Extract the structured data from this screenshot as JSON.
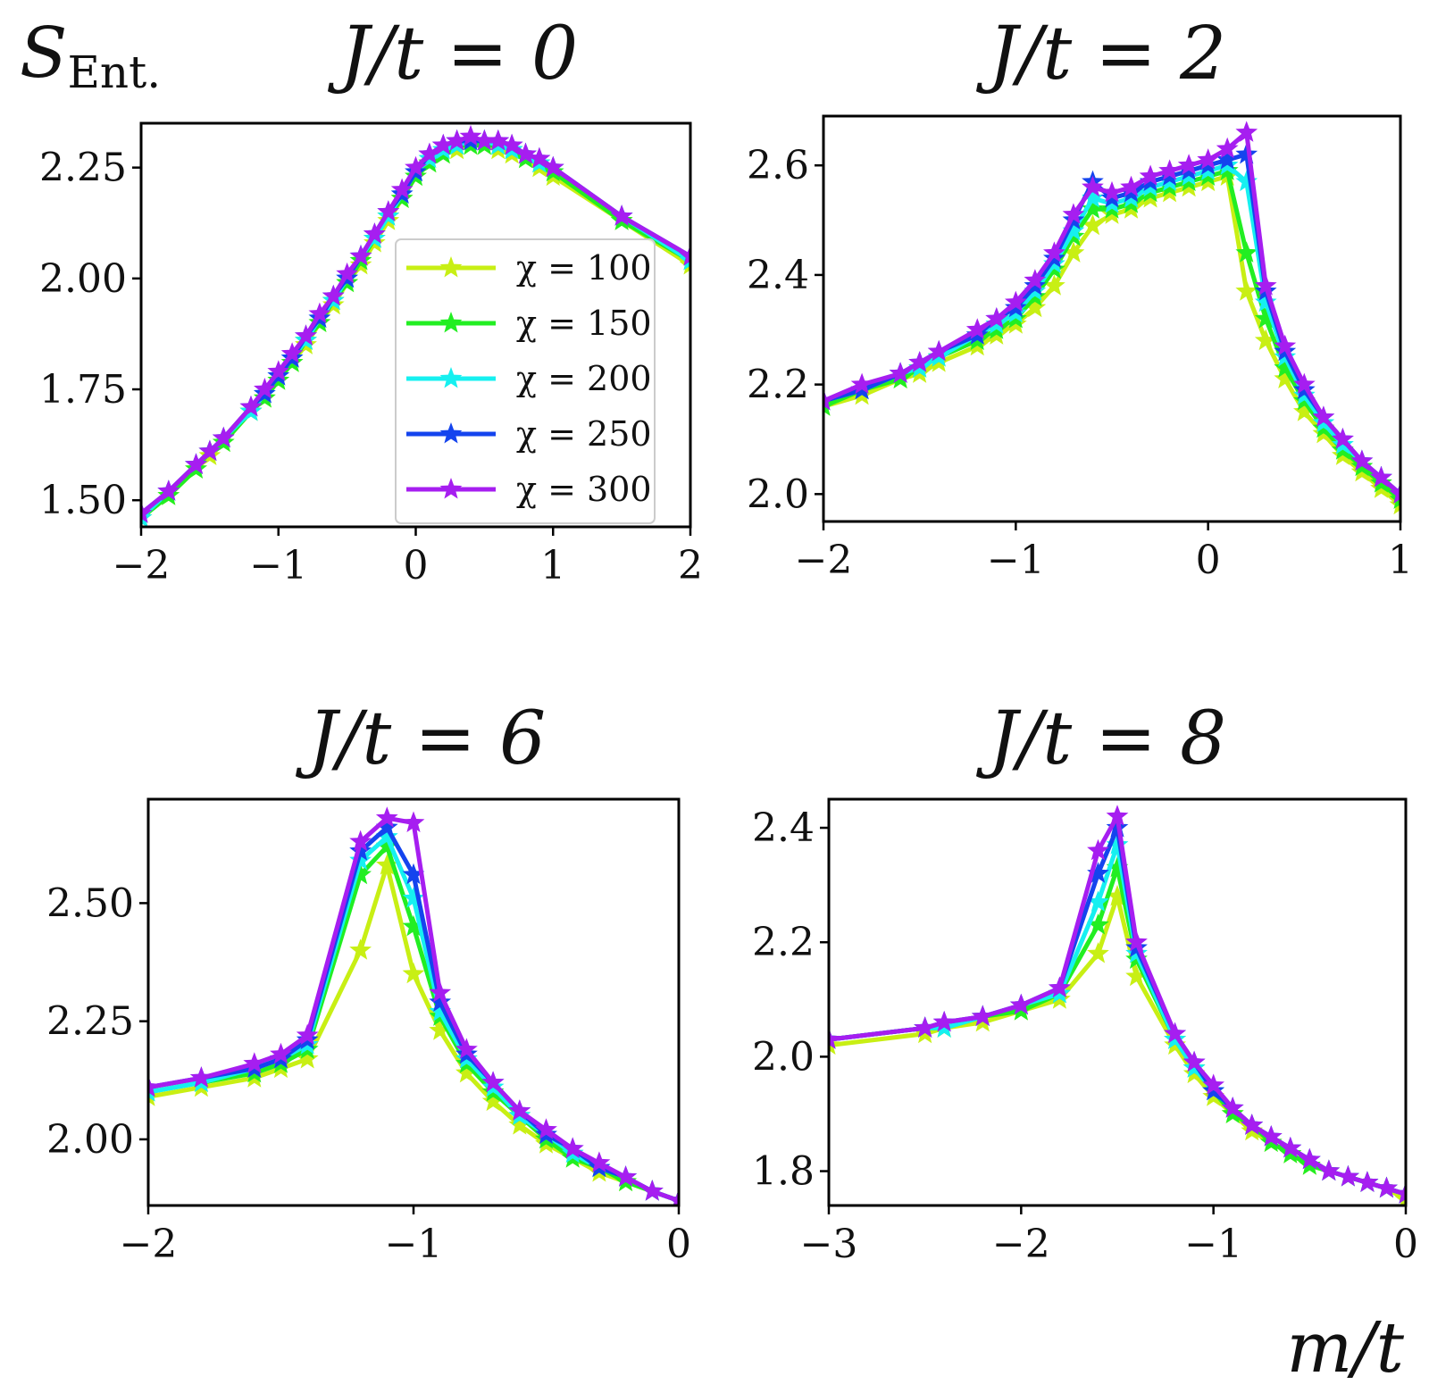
{
  "figure": {
    "ylabel": "S_Ent.",
    "ylabel_main": "S",
    "ylabel_sub": "Ent.",
    "xlabel": "m/t"
  },
  "legend": {
    "items": [
      {
        "label": "χ = 100",
        "color": "#c8ef14"
      },
      {
        "label": "χ = 150",
        "color": "#22ee22"
      },
      {
        "label": "χ = 200",
        "color": "#16f0f0"
      },
      {
        "label": "χ = 250",
        "color": "#1444ee"
      },
      {
        "label": "χ = 300",
        "color": "#a61ef0"
      }
    ]
  },
  "chart_data": [
    {
      "type": "line",
      "title": "J/t = 0",
      "xlim": [
        -2,
        2
      ],
      "ylim": [
        1.44,
        2.35
      ],
      "xticks": [
        -2,
        -1,
        0,
        1,
        2
      ],
      "yticks": [
        1.5,
        1.75,
        2.0,
        2.25
      ],
      "xtick_labels": [
        "−2",
        "−1",
        "0",
        "1",
        "2"
      ],
      "ytick_labels": [
        "1.50",
        "1.75",
        "2.00",
        "2.25"
      ],
      "legend": "inside",
      "x": [
        -2.0,
        -1.8,
        -1.6,
        -1.5,
        -1.4,
        -1.2,
        -1.1,
        -1.0,
        -0.9,
        -0.8,
        -0.7,
        -0.6,
        -0.5,
        -0.4,
        -0.3,
        -0.2,
        -0.1,
        0.0,
        0.1,
        0.2,
        0.3,
        0.4,
        0.5,
        0.6,
        0.7,
        0.8,
        0.9,
        1.0,
        1.5,
        2.0
      ],
      "series": [
        {
          "name": "χ = 100",
          "color": "#c8ef14",
          "values": [
            1.46,
            1.51,
            1.57,
            1.6,
            1.63,
            1.7,
            1.73,
            1.77,
            1.81,
            1.85,
            1.9,
            1.94,
            1.99,
            2.03,
            2.08,
            2.13,
            2.18,
            2.23,
            2.26,
            2.28,
            2.29,
            2.3,
            2.3,
            2.29,
            2.28,
            2.27,
            2.25,
            2.23,
            2.13,
            2.03
          ]
        },
        {
          "name": "χ = 150",
          "color": "#22ee22",
          "values": [
            1.46,
            1.51,
            1.57,
            1.61,
            1.63,
            1.7,
            1.73,
            1.77,
            1.81,
            1.86,
            1.9,
            1.95,
            1.99,
            2.04,
            2.09,
            2.14,
            2.18,
            2.23,
            2.26,
            2.28,
            2.3,
            2.3,
            2.3,
            2.3,
            2.29,
            2.27,
            2.26,
            2.24,
            2.13,
            2.04
          ]
        },
        {
          "name": "χ = 200",
          "color": "#16f0f0",
          "values": [
            1.46,
            1.52,
            1.58,
            1.61,
            1.64,
            1.7,
            1.74,
            1.78,
            1.82,
            1.86,
            1.91,
            1.95,
            2.0,
            2.05,
            2.09,
            2.14,
            2.19,
            2.24,
            2.27,
            2.29,
            2.3,
            2.31,
            2.31,
            2.3,
            2.29,
            2.28,
            2.26,
            2.25,
            2.14,
            2.04
          ]
        },
        {
          "name": "χ = 250",
          "color": "#1444ee",
          "values": [
            1.47,
            1.52,
            1.58,
            1.61,
            1.64,
            1.71,
            1.74,
            1.78,
            1.82,
            1.87,
            1.91,
            1.96,
            2.0,
            2.05,
            2.1,
            2.15,
            2.19,
            2.24,
            2.28,
            2.3,
            2.31,
            2.31,
            2.31,
            2.31,
            2.3,
            2.28,
            2.27,
            2.25,
            2.14,
            2.05
          ]
        },
        {
          "name": "χ = 300",
          "color": "#a61ef0",
          "values": [
            1.47,
            1.52,
            1.58,
            1.61,
            1.64,
            1.71,
            1.75,
            1.79,
            1.83,
            1.87,
            1.92,
            1.96,
            2.01,
            2.05,
            2.1,
            2.15,
            2.2,
            2.25,
            2.28,
            2.3,
            2.31,
            2.32,
            2.31,
            2.31,
            2.3,
            2.28,
            2.27,
            2.25,
            2.14,
            2.05
          ]
        }
      ]
    },
    {
      "type": "line",
      "title": "J/t = 2",
      "xlim": [
        -2,
        1
      ],
      "ylim": [
        1.95,
        2.69
      ],
      "xticks": [
        -2,
        -1,
        0,
        1
      ],
      "yticks": [
        2.0,
        2.2,
        2.4,
        2.6
      ],
      "xtick_labels": [
        "−2",
        "−1",
        "0",
        "1"
      ],
      "ytick_labels": [
        "2.0",
        "2.2",
        "2.4",
        "2.6"
      ],
      "x": [
        -2.0,
        -1.8,
        -1.6,
        -1.5,
        -1.4,
        -1.2,
        -1.1,
        -1.0,
        -0.9,
        -0.8,
        -0.7,
        -0.6,
        -0.5,
        -0.4,
        -0.3,
        -0.2,
        -0.1,
        0.0,
        0.1,
        0.2,
        0.3,
        0.4,
        0.5,
        0.6,
        0.7,
        0.8,
        0.9,
        1.0
      ],
      "series": [
        {
          "name": "χ = 100",
          "color": "#c8ef14",
          "values": [
            2.16,
            2.18,
            2.21,
            2.22,
            2.24,
            2.27,
            2.29,
            2.31,
            2.34,
            2.38,
            2.44,
            2.49,
            2.51,
            2.52,
            2.54,
            2.55,
            2.56,
            2.57,
            2.58,
            2.37,
            2.28,
            2.21,
            2.15,
            2.11,
            2.07,
            2.04,
            2.01,
            1.98
          ]
        },
        {
          "name": "χ = 150",
          "color": "#22ee22",
          "values": [
            2.16,
            2.19,
            2.21,
            2.23,
            2.25,
            2.28,
            2.3,
            2.32,
            2.36,
            2.41,
            2.47,
            2.52,
            2.52,
            2.53,
            2.55,
            2.56,
            2.57,
            2.58,
            2.59,
            2.44,
            2.32,
            2.23,
            2.17,
            2.12,
            2.08,
            2.05,
            2.02,
            1.99
          ]
        },
        {
          "name": "χ = 200",
          "color": "#16f0f0",
          "values": [
            2.17,
            2.19,
            2.22,
            2.23,
            2.25,
            2.29,
            2.31,
            2.33,
            2.37,
            2.42,
            2.48,
            2.54,
            2.53,
            2.54,
            2.56,
            2.57,
            2.58,
            2.59,
            2.6,
            2.57,
            2.35,
            2.25,
            2.18,
            2.13,
            2.09,
            2.06,
            2.03,
            2.0
          ]
        },
        {
          "name": "χ = 250",
          "color": "#1444ee",
          "values": [
            2.17,
            2.19,
            2.22,
            2.24,
            2.26,
            2.29,
            2.32,
            2.34,
            2.38,
            2.43,
            2.5,
            2.57,
            2.54,
            2.55,
            2.57,
            2.58,
            2.59,
            2.6,
            2.61,
            2.62,
            2.37,
            2.26,
            2.19,
            2.14,
            2.1,
            2.06,
            2.03,
            2.0
          ]
        },
        {
          "name": "χ = 300",
          "color": "#a61ef0",
          "values": [
            2.17,
            2.2,
            2.22,
            2.24,
            2.26,
            2.3,
            2.32,
            2.35,
            2.39,
            2.44,
            2.51,
            2.56,
            2.55,
            2.56,
            2.58,
            2.59,
            2.6,
            2.61,
            2.63,
            2.66,
            2.38,
            2.27,
            2.2,
            2.14,
            2.1,
            2.06,
            2.03,
            2.0
          ]
        }
      ]
    },
    {
      "type": "line",
      "title": "J/t = 6",
      "xlim": [
        -2,
        0
      ],
      "ylim": [
        1.86,
        2.72
      ],
      "xticks": [
        -2,
        -1,
        0
      ],
      "yticks": [
        2.0,
        2.25,
        2.5
      ],
      "xtick_labels": [
        "−2",
        "−1",
        "0"
      ],
      "ytick_labels": [
        "2.00",
        "2.25",
        "2.50"
      ],
      "x": [
        -2.0,
        -1.8,
        -1.6,
        -1.5,
        -1.4,
        -1.2,
        -1.1,
        -1.0,
        -0.9,
        -0.8,
        -0.7,
        -0.6,
        -0.5,
        -0.4,
        -0.3,
        -0.2,
        -0.1,
        0.0
      ],
      "series": [
        {
          "name": "χ = 100",
          "color": "#c8ef14",
          "values": [
            2.09,
            2.11,
            2.13,
            2.15,
            2.17,
            2.4,
            2.58,
            2.35,
            2.23,
            2.14,
            2.08,
            2.03,
            1.99,
            1.96,
            1.93,
            1.91,
            1.89,
            1.87
          ]
        },
        {
          "name": "χ = 150",
          "color": "#22ee22",
          "values": [
            2.1,
            2.12,
            2.14,
            2.16,
            2.19,
            2.56,
            2.62,
            2.45,
            2.26,
            2.16,
            2.1,
            2.05,
            2.0,
            1.96,
            1.94,
            1.91,
            1.89,
            1.87
          ]
        },
        {
          "name": "χ = 200",
          "color": "#16f0f0",
          "values": [
            2.1,
            2.12,
            2.15,
            2.17,
            2.2,
            2.59,
            2.64,
            2.51,
            2.27,
            2.17,
            2.11,
            2.05,
            2.01,
            1.97,
            1.94,
            1.92,
            1.89,
            1.87
          ]
        },
        {
          "name": "χ = 250",
          "color": "#1444ee",
          "values": [
            2.11,
            2.13,
            2.15,
            2.17,
            2.21,
            2.61,
            2.66,
            2.56,
            2.29,
            2.18,
            2.12,
            2.06,
            2.01,
            1.98,
            1.94,
            1.92,
            1.89,
            1.87
          ]
        },
        {
          "name": "χ = 300",
          "color": "#a61ef0",
          "values": [
            2.11,
            2.13,
            2.16,
            2.18,
            2.22,
            2.63,
            2.68,
            2.67,
            2.31,
            2.19,
            2.12,
            2.06,
            2.02,
            1.98,
            1.95,
            1.92,
            1.89,
            1.87
          ]
        }
      ]
    },
    {
      "type": "line",
      "title": "J/t = 8",
      "xlim": [
        -3,
        0
      ],
      "ylim": [
        1.74,
        2.45
      ],
      "xticks": [
        -3,
        -2,
        -1,
        0
      ],
      "yticks": [
        1.8,
        2.0,
        2.2,
        2.4
      ],
      "xtick_labels": [
        "−3",
        "−2",
        "−1",
        "0"
      ],
      "ytick_labels": [
        "1.8",
        "2.0",
        "2.2",
        "2.4"
      ],
      "x": [
        -3.0,
        -2.5,
        -2.4,
        -2.2,
        -2.0,
        -1.8,
        -1.6,
        -1.5,
        -1.4,
        -1.2,
        -1.1,
        -1.0,
        -0.9,
        -0.8,
        -0.7,
        -0.6,
        -0.5,
        -0.4,
        -0.3,
        -0.2,
        -0.1,
        0.0
      ],
      "series": [
        {
          "name": "χ = 100",
          "color": "#c8ef14",
          "values": [
            2.02,
            2.04,
            2.05,
            2.06,
            2.08,
            2.1,
            2.18,
            2.28,
            2.14,
            2.02,
            1.97,
            1.93,
            1.9,
            1.87,
            1.85,
            1.83,
            1.81,
            1.8,
            1.79,
            1.78,
            1.77,
            1.75
          ]
        },
        {
          "name": "χ = 150",
          "color": "#22ee22",
          "values": [
            2.03,
            2.05,
            2.05,
            2.07,
            2.08,
            2.11,
            2.23,
            2.33,
            2.17,
            2.03,
            1.98,
            1.94,
            1.9,
            1.88,
            1.85,
            1.83,
            1.81,
            1.8,
            1.79,
            1.78,
            1.77,
            1.76
          ]
        },
        {
          "name": "χ = 200",
          "color": "#16f0f0",
          "values": [
            2.03,
            2.05,
            2.05,
            2.07,
            2.09,
            2.11,
            2.27,
            2.37,
            2.18,
            2.03,
            1.98,
            1.94,
            1.91,
            1.88,
            1.86,
            1.84,
            1.82,
            1.8,
            1.79,
            1.78,
            1.77,
            1.76
          ]
        },
        {
          "name": "χ = 250",
          "color": "#1444ee",
          "values": [
            2.03,
            2.05,
            2.06,
            2.07,
            2.09,
            2.12,
            2.32,
            2.4,
            2.19,
            2.04,
            1.99,
            1.94,
            1.91,
            1.88,
            1.86,
            1.84,
            1.82,
            1.8,
            1.79,
            1.78,
            1.77,
            1.76
          ]
        },
        {
          "name": "χ = 300",
          "color": "#a61ef0",
          "values": [
            2.03,
            2.05,
            2.06,
            2.07,
            2.09,
            2.12,
            2.36,
            2.42,
            2.2,
            2.04,
            1.99,
            1.95,
            1.91,
            1.88,
            1.86,
            1.84,
            1.82,
            1.8,
            1.79,
            1.78,
            1.77,
            1.76
          ]
        }
      ]
    }
  ]
}
